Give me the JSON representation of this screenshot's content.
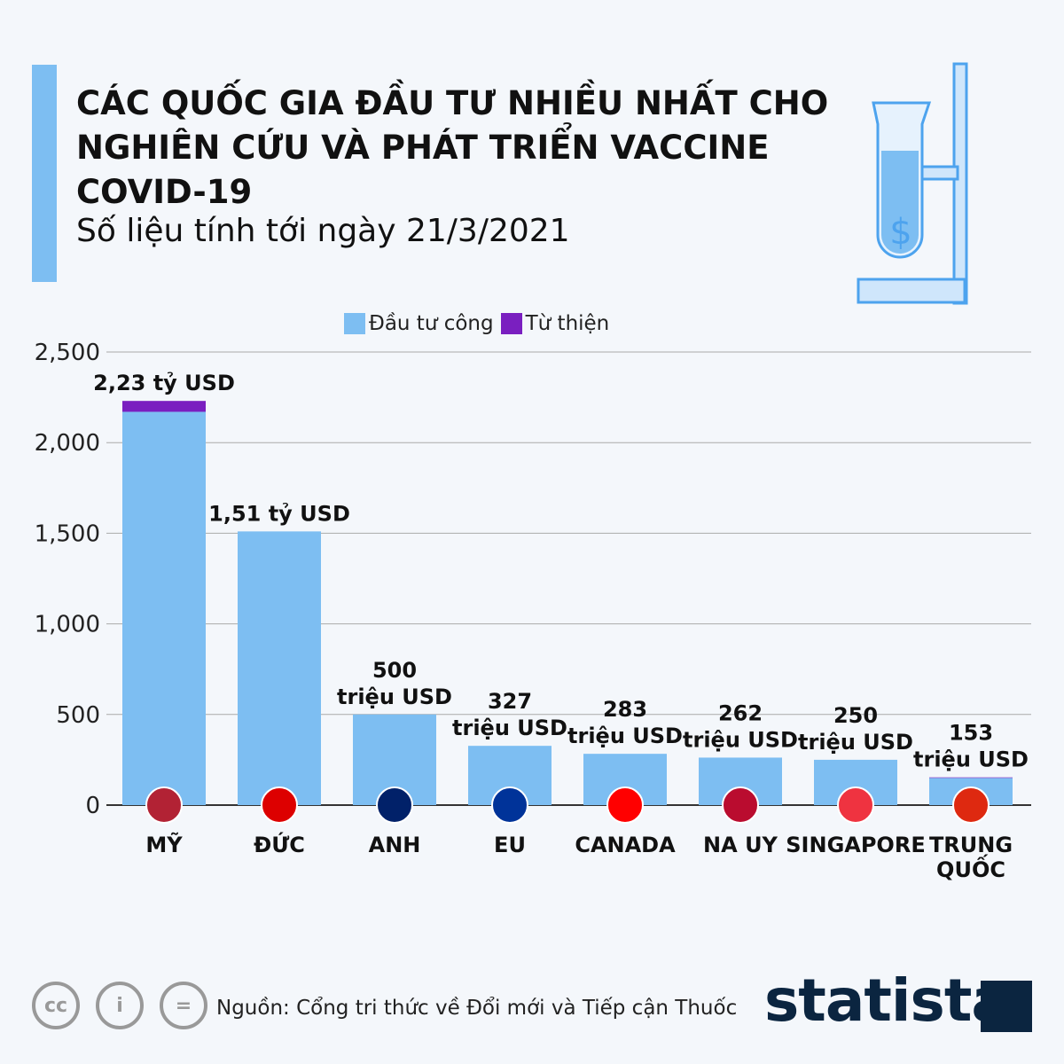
{
  "header": {
    "title": "CÁC QUỐC GIA ĐẦU TƯ NHIỀU NHẤT CHO NGHIÊN CỨU VÀ PHÁT TRIỂN VACCINE COVID-19",
    "subtitle": "Số liệu tính tới ngày 21/3/2021"
  },
  "chart_data": {
    "type": "bar",
    "stacked": true,
    "categories": [
      "MỸ",
      "ĐỨC",
      "ANH",
      "EU",
      "CANADA",
      "NA UY",
      "SINGAPORE",
      "TRUNG QUỐC"
    ],
    "series": [
      {
        "name": "Đầu tư công",
        "color": "#7dbef2",
        "values": [
          2170,
          1510,
          500,
          327,
          283,
          262,
          250,
          150
        ]
      },
      {
        "name": "Từ thiện",
        "color": "#7a1fc0",
        "values": [
          60,
          0,
          0,
          0,
          0,
          0,
          0,
          3
        ]
      }
    ],
    "data_labels": [
      [
        "2,23 tỷ USD"
      ],
      [
        "1,51 tỷ USD"
      ],
      [
        "500",
        "triệu USD"
      ],
      [
        "327",
        "triệu USD"
      ],
      [
        "283",
        "triệu USD"
      ],
      [
        "262",
        "triệu USD"
      ],
      [
        "250",
        "triệu USD"
      ],
      [
        "153",
        "triệu USD"
      ]
    ],
    "yticks": [
      "0",
      "500",
      "1,000",
      "1,500",
      "2,000",
      "2,500"
    ],
    "ylim": [
      0,
      2500
    ],
    "grid": true,
    "legend": "top"
  },
  "flags": [
    "#b22234",
    "#dd0000",
    "#012169",
    "#003399",
    "#ff0000",
    "#ba0c2f",
    "#ef3340",
    "#de2910"
  ],
  "footer": {
    "source": "Nguồn: Cổng tri thức về Đổi mới và Tiếp cận Thuốc",
    "brand": "statista",
    "cc": "cc",
    "nd": "="
  }
}
